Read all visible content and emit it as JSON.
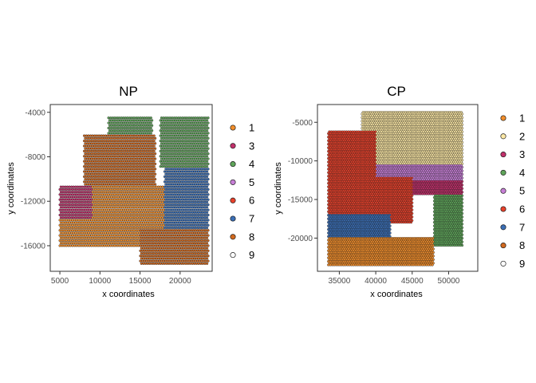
{
  "colors": {
    "1": "#f28e2b",
    "2": "#fde9a6",
    "3": "#c2306b",
    "4": "#5fa55a",
    "5": "#c77fd6",
    "6": "#e8412b",
    "7": "#3b6fb6",
    "8": "#d2691e",
    "9": "#ffffff"
  },
  "chart_data": [
    {
      "type": "scatter",
      "title": "NP",
      "xlabel": "x coordinates",
      "ylabel": "y coordinates",
      "xlim": [
        3800,
        24000
      ],
      "ylim": [
        -18300,
        -3300
      ],
      "xticks": [
        5000,
        10000,
        15000,
        20000
      ],
      "yticks": [
        -4000,
        -8000,
        -12000,
        -16000
      ],
      "legend": {
        "position": "right",
        "entries": [
          "1",
          "3",
          "4",
          "5",
          "6",
          "7",
          "8",
          "9"
        ]
      },
      "grid": false,
      "series_extent": {
        "x_min": 5000,
        "x_max": 23500,
        "y_min": -17800,
        "y_max": -4500
      },
      "regions": [
        {
          "cluster": "4",
          "x": [
            11000,
            16500
          ],
          "y": [
            -4500,
            -6500
          ]
        },
        {
          "cluster": "4",
          "x": [
            17500,
            23500
          ],
          "y": [
            -4500,
            -9000
          ]
        },
        {
          "cluster": "8",
          "x": [
            8000,
            17000
          ],
          "y": [
            -6000,
            -10500
          ]
        },
        {
          "cluster": "3",
          "x": [
            5000,
            11000
          ],
          "y": [
            -10500,
            -13500
          ]
        },
        {
          "cluster": "1",
          "x": [
            9000,
            18000
          ],
          "y": [
            -10500,
            -15000
          ]
        },
        {
          "cluster": "7",
          "x": [
            18000,
            23500
          ],
          "y": [
            -9000,
            -17800
          ]
        },
        {
          "cluster": "1",
          "x": [
            5000,
            18000
          ],
          "y": [
            -13500,
            -16000
          ]
        },
        {
          "cluster": "8",
          "x": [
            15000,
            23500
          ],
          "y": [
            -14500,
            -17800
          ]
        }
      ]
    },
    {
      "type": "scatter",
      "title": "CP",
      "xlabel": "x coordinates",
      "ylabel": "y coordinates",
      "xlim": [
        32000,
        54000
      ],
      "ylim": [
        -24300,
        -2700
      ],
      "xticks": [
        35000,
        40000,
        45000,
        50000
      ],
      "yticks": [
        -5000,
        -10000,
        -15000,
        -20000
      ],
      "legend": {
        "position": "right",
        "entries": [
          "1",
          "2",
          "3",
          "4",
          "5",
          "6",
          "7",
          "8",
          "9"
        ]
      },
      "grid": false,
      "series_extent": {
        "x_min": 33500,
        "x_max": 52000,
        "y_min": -23500,
        "y_max": -3700
      },
      "regions": [
        {
          "cluster": "2",
          "x": [
            38000,
            52000
          ],
          "y": [
            -3700,
            -10500
          ]
        },
        {
          "cluster": "6",
          "x": [
            33500,
            40000
          ],
          "y": [
            -6000,
            -12000
          ]
        },
        {
          "cluster": "5",
          "x": [
            40000,
            52000
          ],
          "y": [
            -10500,
            -12500
          ]
        },
        {
          "cluster": "3",
          "x": [
            42000,
            52000
          ],
          "y": [
            -12500,
            -14500
          ]
        },
        {
          "cluster": "6",
          "x": [
            33500,
            45000
          ],
          "y": [
            -12000,
            -18000
          ]
        },
        {
          "cluster": "4",
          "x": [
            48000,
            52000
          ],
          "y": [
            -14500,
            -21000
          ]
        },
        {
          "cluster": "7",
          "x": [
            33500,
            42000
          ],
          "y": [
            -17000,
            -20000
          ]
        },
        {
          "cluster": "1",
          "x": [
            33500,
            48000
          ],
          "y": [
            -20000,
            -23500
          ]
        }
      ]
    }
  ]
}
